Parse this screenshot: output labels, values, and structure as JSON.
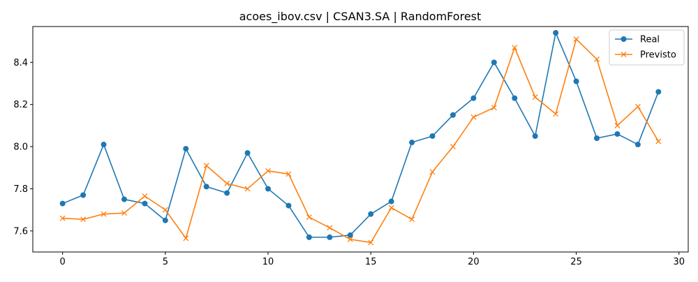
{
  "chart_data": {
    "type": "line",
    "title": "acoes_ibov.csv | CSAN3.SA | RandomForest",
    "xlabel": "",
    "ylabel": "",
    "xlim": [
      -1.45,
      30.45
    ],
    "ylim": [
      7.5,
      8.57
    ],
    "x_ticks": [
      0,
      5,
      10,
      15,
      20,
      25,
      30
    ],
    "y_ticks": [
      7.6,
      7.8,
      8.0,
      8.2,
      8.4
    ],
    "x_tick_labels": [
      "0",
      "5",
      "10",
      "15",
      "20",
      "25",
      "30"
    ],
    "y_tick_labels": [
      "7.6",
      "7.8",
      "8.0",
      "8.2",
      "8.4"
    ],
    "grid": false,
    "legend_position": "top-right",
    "x": [
      0,
      1,
      2,
      3,
      4,
      5,
      6,
      7,
      8,
      9,
      10,
      11,
      12,
      13,
      14,
      15,
      16,
      17,
      18,
      19,
      20,
      21,
      22,
      23,
      24,
      25,
      26,
      27,
      28,
      29
    ],
    "series": [
      {
        "name": "Real",
        "color": "#1f77b4",
        "marker": "circle",
        "values": [
          7.73,
          7.77,
          8.01,
          7.75,
          7.73,
          7.65,
          7.99,
          7.81,
          7.78,
          7.97,
          7.8,
          7.72,
          7.57,
          7.57,
          7.58,
          7.68,
          7.74,
          8.02,
          8.05,
          8.15,
          8.23,
          8.4,
          8.23,
          8.05,
          8.54,
          8.31,
          8.04,
          8.06,
          8.01,
          8.26
        ]
      },
      {
        "name": "Previsto",
        "color": "#ff7f0e",
        "marker": "x",
        "values": [
          7.66,
          7.655,
          7.68,
          7.685,
          7.765,
          7.7,
          7.565,
          7.91,
          7.825,
          7.8,
          7.885,
          7.87,
          7.665,
          7.615,
          7.56,
          7.545,
          7.71,
          7.655,
          7.88,
          8.0,
          8.14,
          8.185,
          8.47,
          8.235,
          8.155,
          8.51,
          8.415,
          8.1,
          8.19,
          8.025
        ]
      }
    ]
  }
}
